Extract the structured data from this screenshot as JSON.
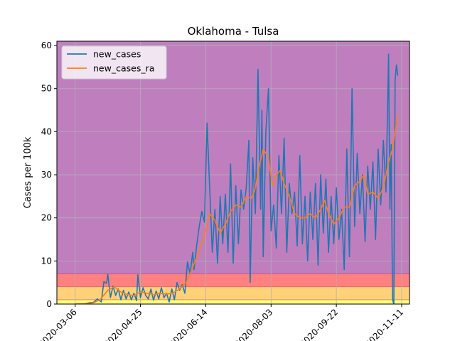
{
  "chart_data": {
    "type": "line",
    "title": "Oklahoma - Tulsa",
    "xlabel": "",
    "ylabel": "Cases per 100k",
    "ylim": [
      0,
      61
    ],
    "xlim": [
      "2020-02-21",
      "2020-11-17"
    ],
    "grid": true,
    "legend_position": "top-left",
    "yticks": [
      0,
      10,
      20,
      30,
      40,
      50,
      60
    ],
    "xticks": [
      "2020-03-06",
      "2020-04-25",
      "2020-06-14",
      "2020-08-03",
      "2020-09-22",
      "2020-11-11"
    ],
    "bands": [
      {
        "from": 0,
        "to": 1,
        "color": "#ffff7a"
      },
      {
        "from": 1,
        "to": 4,
        "color": "#ffd27a"
      },
      {
        "from": 4,
        "to": 7,
        "color": "#ff8080"
      },
      {
        "from": 7,
        "to": 61,
        "color": "#bf7fbf"
      }
    ],
    "band_edge_color": "#c0324f",
    "series": [
      {
        "name": "new_cases",
        "color": "#1f77b4",
        "points": [
          [
            "2020-03-06",
            0
          ],
          [
            "2020-03-10",
            0
          ],
          [
            "2020-03-14",
            0.1
          ],
          [
            "2020-03-17",
            0.3
          ],
          [
            "2020-03-20",
            0.4
          ],
          [
            "2020-03-23",
            1.2
          ],
          [
            "2020-03-26",
            0.5
          ],
          [
            "2020-03-28",
            5.2
          ],
          [
            "2020-03-30",
            4.8
          ],
          [
            "2020-03-31",
            6.9
          ],
          [
            "2020-04-02",
            1.5
          ],
          [
            "2020-04-04",
            4.2
          ],
          [
            "2020-04-06",
            2.0
          ],
          [
            "2020-04-08",
            3.5
          ],
          [
            "2020-04-10",
            1.0
          ],
          [
            "2020-04-12",
            3.2
          ],
          [
            "2020-04-14",
            1.2
          ],
          [
            "2020-04-16",
            2.8
          ],
          [
            "2020-04-18",
            1.0
          ],
          [
            "2020-04-20",
            2.5
          ],
          [
            "2020-04-22",
            0.8
          ],
          [
            "2020-04-23",
            6.8
          ],
          [
            "2020-04-25",
            1.5
          ],
          [
            "2020-04-27",
            3.8
          ],
          [
            "2020-04-29",
            2.0
          ],
          [
            "2020-05-01",
            1.2
          ],
          [
            "2020-05-03",
            3.5
          ],
          [
            "2020-05-05",
            0.9
          ],
          [
            "2020-05-07",
            3.0
          ],
          [
            "2020-05-09",
            1.2
          ],
          [
            "2020-05-11",
            3.8
          ],
          [
            "2020-05-13",
            1.5
          ],
          [
            "2020-05-15",
            2.5
          ],
          [
            "2020-05-17",
            0.5
          ],
          [
            "2020-05-19",
            3.5
          ],
          [
            "2020-05-21",
            1.0
          ],
          [
            "2020-05-23",
            5.0
          ],
          [
            "2020-05-25",
            3.2
          ],
          [
            "2020-05-27",
            4.5
          ],
          [
            "2020-05-29",
            2.5
          ],
          [
            "2020-05-31",
            9.8
          ],
          [
            "2020-06-02",
            7.0
          ],
          [
            "2020-06-04",
            12.0
          ],
          [
            "2020-06-05",
            8.0
          ],
          [
            "2020-06-07",
            13.5
          ],
          [
            "2020-06-09",
            18.0
          ],
          [
            "2020-06-11",
            21.5
          ],
          [
            "2020-06-13",
            19.0
          ],
          [
            "2020-06-15",
            42.0
          ],
          [
            "2020-06-17",
            27.0
          ],
          [
            "2020-06-19",
            12.0
          ],
          [
            "2020-06-21",
            22.0
          ],
          [
            "2020-06-23",
            9.5
          ],
          [
            "2020-06-25",
            25.0
          ],
          [
            "2020-06-27",
            14.0
          ],
          [
            "2020-06-29",
            25.5
          ],
          [
            "2020-07-01",
            12.0
          ],
          [
            "2020-07-03",
            32.5
          ],
          [
            "2020-07-05",
            9.5
          ],
          [
            "2020-07-07",
            27.5
          ],
          [
            "2020-07-09",
            14.0
          ],
          [
            "2020-07-11",
            26.5
          ],
          [
            "2020-07-13",
            22.0
          ],
          [
            "2020-07-15",
            27.0
          ],
          [
            "2020-07-17",
            38.0
          ],
          [
            "2020-07-18",
            5.0
          ],
          [
            "2020-07-20",
            34.0
          ],
          [
            "2020-07-22",
            21.0
          ],
          [
            "2020-07-24",
            54.5
          ],
          [
            "2020-07-26",
            22.0
          ],
          [
            "2020-07-27",
            45.0
          ],
          [
            "2020-07-28",
            11.0
          ],
          [
            "2020-07-30",
            40.0
          ],
          [
            "2020-08-01",
            50.0
          ],
          [
            "2020-08-03",
            17.0
          ],
          [
            "2020-08-05",
            23.0
          ],
          [
            "2020-08-07",
            13.0
          ],
          [
            "2020-08-09",
            34.5
          ],
          [
            "2020-08-11",
            21.0
          ],
          [
            "2020-08-13",
            38.5
          ],
          [
            "2020-08-15",
            12.0
          ],
          [
            "2020-08-17",
            28.0
          ],
          [
            "2020-08-19",
            21.0
          ],
          [
            "2020-08-21",
            26.0
          ],
          [
            "2020-08-23",
            13.5
          ],
          [
            "2020-08-25",
            34.5
          ],
          [
            "2020-08-27",
            14.0
          ],
          [
            "2020-08-29",
            25.0
          ],
          [
            "2020-08-31",
            10.0
          ],
          [
            "2020-09-02",
            26.0
          ],
          [
            "2020-09-04",
            15.0
          ],
          [
            "2020-09-06",
            28.0
          ],
          [
            "2020-09-08",
            9.0
          ],
          [
            "2020-09-10",
            30.0
          ],
          [
            "2020-09-12",
            16.5
          ],
          [
            "2020-09-14",
            29.0
          ],
          [
            "2020-09-16",
            12.0
          ],
          [
            "2020-09-18",
            25.0
          ],
          [
            "2020-09-20",
            14.0
          ],
          [
            "2020-09-22",
            27.0
          ],
          [
            "2020-09-24",
            15.0
          ],
          [
            "2020-09-26",
            22.0
          ],
          [
            "2020-09-28",
            8.0
          ],
          [
            "2020-09-30",
            36.0
          ],
          [
            "2020-10-02",
            11.0
          ],
          [
            "2020-10-04",
            50.0
          ],
          [
            "2020-10-06",
            18.0
          ],
          [
            "2020-10-08",
            35.0
          ],
          [
            "2020-10-10",
            21.0
          ],
          [
            "2020-10-12",
            30.0
          ],
          [
            "2020-10-14",
            14.5
          ],
          [
            "2020-10-16",
            32.0
          ],
          [
            "2020-10-18",
            22.0
          ],
          [
            "2020-10-20",
            33.0
          ],
          [
            "2020-10-22",
            15.0
          ],
          [
            "2020-10-24",
            36.0
          ],
          [
            "2020-10-26",
            23.0
          ],
          [
            "2020-10-28",
            38.0
          ],
          [
            "2020-10-30",
            26.0
          ],
          [
            "2020-11-01",
            58.0
          ],
          [
            "2020-11-02",
            22.0
          ],
          [
            "2020-11-03",
            37.0
          ],
          [
            "2020-11-04",
            1.0
          ],
          [
            "2020-11-05",
            0
          ],
          [
            "2020-11-06",
            52.0
          ],
          [
            "2020-11-07",
            55.5
          ],
          [
            "2020-11-08",
            53.0
          ]
        ]
      },
      {
        "name": "new_cases_ra",
        "color": "#ff7f0e",
        "points": [
          [
            "2020-03-06",
            0
          ],
          [
            "2020-03-14",
            0.05
          ],
          [
            "2020-03-20",
            0.3
          ],
          [
            "2020-03-25",
            1.0
          ],
          [
            "2020-03-31",
            3.2
          ],
          [
            "2020-04-05",
            4.0
          ],
          [
            "2020-04-10",
            2.8
          ],
          [
            "2020-04-15",
            2.2
          ],
          [
            "2020-04-20",
            2.0
          ],
          [
            "2020-04-25",
            2.8
          ],
          [
            "2020-04-30",
            2.5
          ],
          [
            "2020-05-05",
            2.2
          ],
          [
            "2020-05-10",
            2.5
          ],
          [
            "2020-05-15",
            2.3
          ],
          [
            "2020-05-20",
            2.6
          ],
          [
            "2020-05-25",
            3.5
          ],
          [
            "2020-05-30",
            5.0
          ],
          [
            "2020-06-04",
            8.5
          ],
          [
            "2020-06-09",
            12.5
          ],
          [
            "2020-06-14",
            17.0
          ],
          [
            "2020-06-17",
            21.0
          ],
          [
            "2020-06-21",
            19.5
          ],
          [
            "2020-06-25",
            16.5
          ],
          [
            "2020-06-29",
            18.5
          ],
          [
            "2020-07-03",
            21.5
          ],
          [
            "2020-07-07",
            23.0
          ],
          [
            "2020-07-11",
            22.5
          ],
          [
            "2020-07-15",
            25.0
          ],
          [
            "2020-07-19",
            24.5
          ],
          [
            "2020-07-22",
            27.0
          ],
          [
            "2020-07-25",
            32.0
          ],
          [
            "2020-07-28",
            36.0
          ],
          [
            "2020-08-01",
            34.0
          ],
          [
            "2020-08-04",
            27.5
          ],
          [
            "2020-08-07",
            30.0
          ],
          [
            "2020-08-10",
            31.0
          ],
          [
            "2020-08-13",
            28.0
          ],
          [
            "2020-08-17",
            25.0
          ],
          [
            "2020-08-21",
            21.0
          ],
          [
            "2020-08-25",
            20.0
          ],
          [
            "2020-08-29",
            20.0
          ],
          [
            "2020-09-02",
            21.0
          ],
          [
            "2020-09-06",
            20.0
          ],
          [
            "2020-09-10",
            22.0
          ],
          [
            "2020-09-13",
            24.0
          ],
          [
            "2020-09-16",
            21.0
          ],
          [
            "2020-09-20",
            18.5
          ],
          [
            "2020-09-24",
            20.0
          ],
          [
            "2020-09-28",
            22.5
          ],
          [
            "2020-10-02",
            22.5
          ],
          [
            "2020-10-06",
            27.5
          ],
          [
            "2020-10-10",
            28.5
          ],
          [
            "2020-10-13",
            30.0
          ],
          [
            "2020-10-16",
            25.5
          ],
          [
            "2020-10-20",
            26.0
          ],
          [
            "2020-10-24",
            24.5
          ],
          [
            "2020-10-28",
            27.0
          ],
          [
            "2020-11-01",
            33.0
          ],
          [
            "2020-11-04",
            36.0
          ],
          [
            "2020-11-06",
            40.0
          ],
          [
            "2020-11-08",
            44.0
          ]
        ]
      }
    ]
  }
}
